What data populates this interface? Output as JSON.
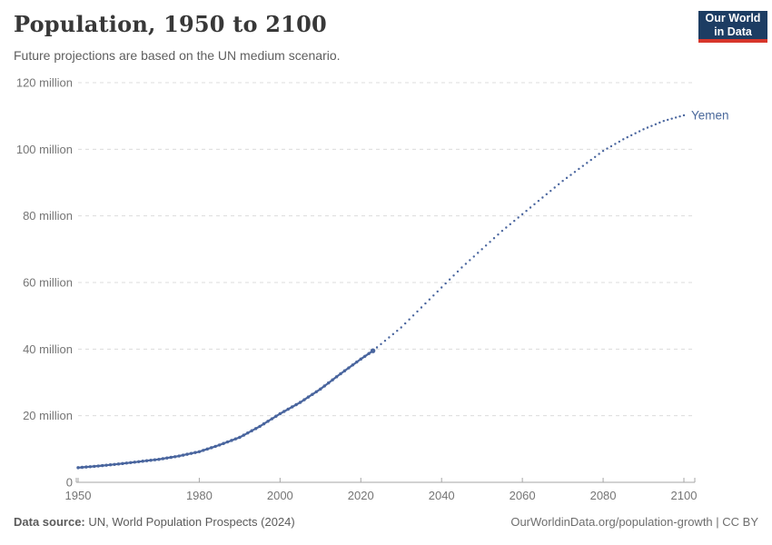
{
  "header": {
    "title": "Population, 1950 to 2100",
    "subtitle": "Future projections are based on the UN medium scenario.",
    "logo": {
      "line1": "Our World",
      "line2": "in Data",
      "bg_color": "#1d3d63",
      "accent_color": "#d7362b"
    }
  },
  "chart_data": {
    "type": "line",
    "title": "Population, 1950 to 2100",
    "subtitle": "Future projections are based on the UN medium scenario.",
    "entity_label": "Yemen",
    "unit": "people",
    "line_color": "#49659e",
    "label_color": "#4C6A9C",
    "grid": true,
    "grid_color": "#dcdcdc",
    "axis_color": "#a5a5a5",
    "tick_text_color": "#757575",
    "legend_position": "end-of-line",
    "xlim": [
      1950,
      2100
    ],
    "ylim": [
      0,
      120
    ],
    "x_ticks": [
      1950,
      1980,
      2000,
      2020,
      2040,
      2060,
      2080,
      2100
    ],
    "y_ticks": [
      {
        "value": 0,
        "label": "0"
      },
      {
        "value": 20,
        "label": "20 million"
      },
      {
        "value": 40,
        "label": "40 million"
      },
      {
        "value": 60,
        "label": "60 million"
      },
      {
        "value": 80,
        "label": "80 million"
      },
      {
        "value": 100,
        "label": "100 million"
      },
      {
        "value": 120,
        "label": "120 million"
      }
    ],
    "series": [
      {
        "name": "Yemen",
        "historical_style": "solid-with-dots",
        "projection_style": "dotted",
        "historical": [
          [
            1950,
            4.4
          ],
          [
            1955,
            4.9
          ],
          [
            1960,
            5.5
          ],
          [
            1965,
            6.2
          ],
          [
            1970,
            6.9
          ],
          [
            1975,
            7.9
          ],
          [
            1980,
            9.2
          ],
          [
            1985,
            11.2
          ],
          [
            1990,
            13.5
          ],
          [
            1995,
            16.8
          ],
          [
            2000,
            20.6
          ],
          [
            2005,
            24.0
          ],
          [
            2010,
            28.0
          ],
          [
            2015,
            32.6
          ],
          [
            2020,
            37.0
          ],
          [
            2023,
            39.5
          ]
        ],
        "projection": [
          [
            2023,
            39.5
          ],
          [
            2025,
            41.5
          ],
          [
            2030,
            46.5
          ],
          [
            2035,
            52.5
          ],
          [
            2040,
            58.5
          ],
          [
            2045,
            64.5
          ],
          [
            2050,
            70.0
          ],
          [
            2055,
            75.5
          ],
          [
            2060,
            80.5
          ],
          [
            2065,
            85.5
          ],
          [
            2070,
            90.5
          ],
          [
            2075,
            95.0
          ],
          [
            2080,
            99.5
          ],
          [
            2085,
            103.0
          ],
          [
            2090,
            106.0
          ],
          [
            2095,
            108.5
          ],
          [
            2100,
            110.2
          ]
        ]
      }
    ]
  },
  "footer": {
    "source_label": "Data source:",
    "source_text": " UN, World Population Prospects (2024)",
    "credit": "OurWorldinData.org/population-growth | CC BY"
  }
}
